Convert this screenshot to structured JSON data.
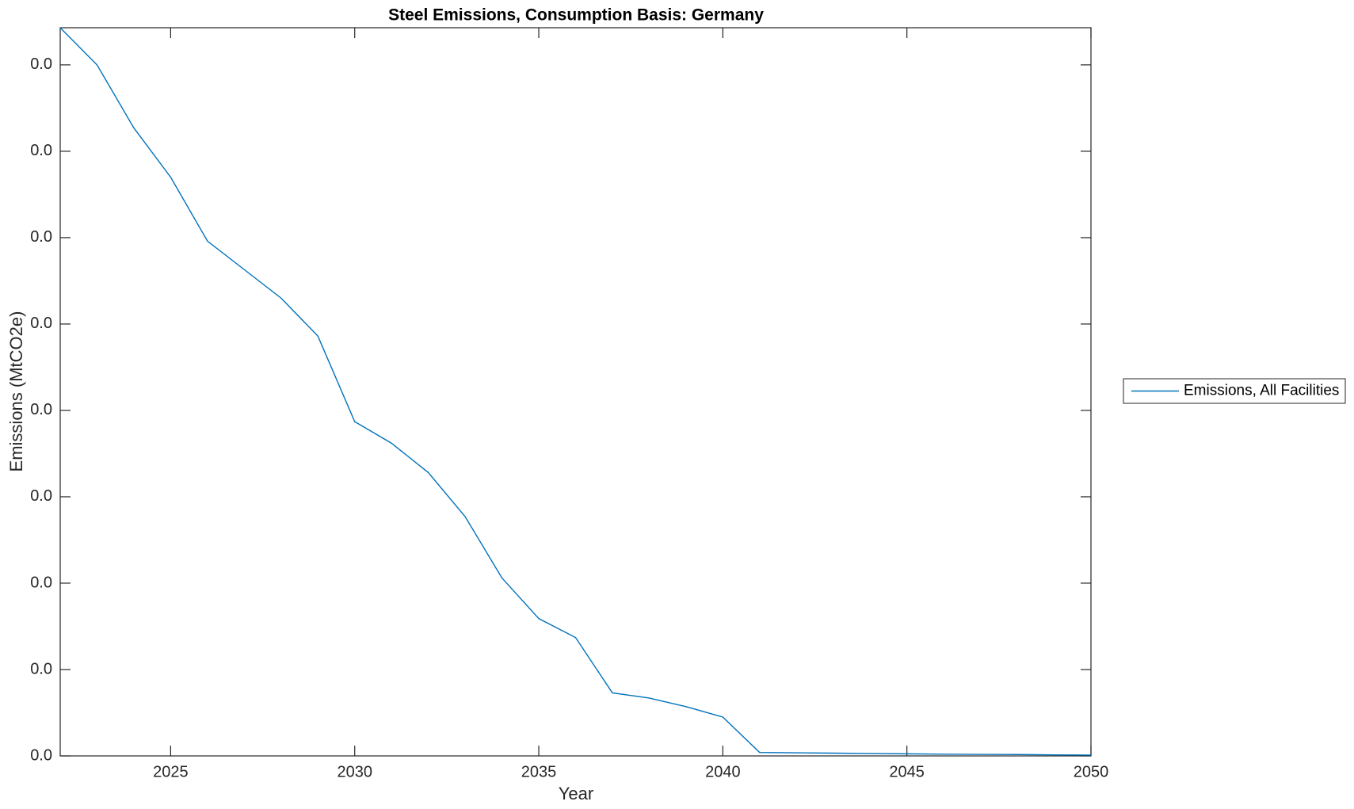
{
  "chart_data": {
    "type": "line",
    "title": "Steel Emissions, Consumption Basis: Germany",
    "x_label": "Year",
    "y_label": "Emissions (MtCO2e)",
    "x": [
      2022,
      2023,
      2024,
      2025,
      2026,
      2027,
      2028,
      2029,
      2030,
      2031,
      2032,
      2033,
      2034,
      2035,
      2036,
      2037,
      2038,
      2039,
      2040,
      2041,
      2042,
      2043,
      2044,
      2045,
      2046,
      2047,
      2048,
      2049,
      2050
    ],
    "series": [
      {
        "name": "Emissions, All Facilities",
        "color": "#0072bd",
        "values": [
          0.04215,
          0.04,
          0.03635,
          0.0335,
          0.0298,
          0.02815,
          0.0265,
          0.0243,
          0.01935,
          0.0181,
          0.0164,
          0.01385,
          0.0103,
          0.00795,
          0.00685,
          0.00365,
          0.00335,
          0.00285,
          0.00225,
          0.0002,
          0.00018,
          0.00016,
          0.00014,
          0.00012,
          0.0001,
          9e-05,
          8e-05,
          6e-05,
          5e-05
        ]
      }
    ],
    "xlim": [
      2022,
      2050
    ],
    "xticks": [
      2025,
      2030,
      2035,
      2040,
      2045,
      2050
    ],
    "ylim": [
      0,
      0.04215
    ],
    "yticks": [
      {
        "value": 0,
        "label": "0.0"
      },
      {
        "value": 0.005,
        "label": "0.0"
      },
      {
        "value": 0.01,
        "label": "0.0"
      },
      {
        "value": 0.015,
        "label": "0.0"
      },
      {
        "value": 0.02,
        "label": "0.0"
      },
      {
        "value": 0.025,
        "label": "0.0"
      },
      {
        "value": 0.03,
        "label": "0.0"
      },
      {
        "value": 0.035,
        "label": "0.0"
      },
      {
        "value": 0.04,
        "label": "0.0"
      }
    ],
    "grid": false,
    "legend": "outside-right"
  }
}
